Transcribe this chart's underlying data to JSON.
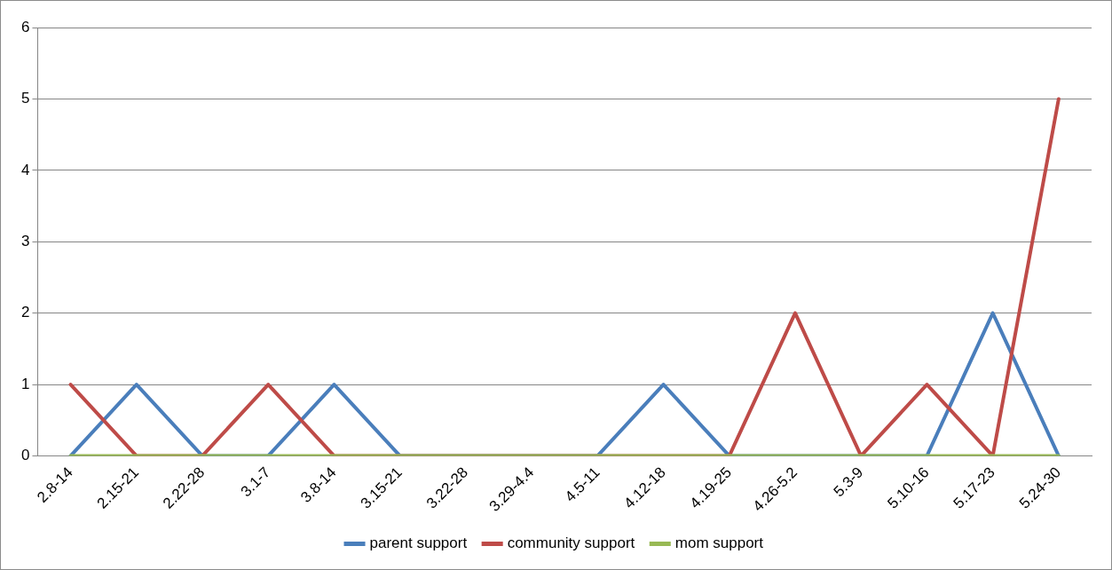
{
  "chart_data": {
    "type": "line",
    "categories": [
      "2.8-14",
      "2.15-21",
      "2.22-28",
      "3.1-7",
      "3.8-14",
      "3.15-21",
      "3.22-28",
      "3.29-4.4",
      "4.5-11",
      "4.12-18",
      "4.19-25",
      "4.26-5.2",
      "5.3-9",
      "5.10-16",
      "5.17-23",
      "5.24-30"
    ],
    "series": [
      {
        "name": "parent support",
        "color": "#4a7ebb",
        "values": [
          0,
          1,
          0,
          0,
          1,
          0,
          0,
          0,
          0,
          1,
          0,
          0,
          0,
          0,
          2,
          0
        ]
      },
      {
        "name": "community support",
        "color": "#be4b48",
        "values": [
          1,
          0,
          0,
          1,
          0,
          0,
          0,
          0,
          0,
          0,
          0,
          2,
          0,
          1,
          0,
          5
        ]
      },
      {
        "name": "mom support",
        "color": "#98b954",
        "values": [
          0,
          0,
          0,
          0,
          0,
          0,
          0,
          0,
          0,
          0,
          0,
          0,
          0,
          0,
          0,
          0
        ]
      }
    ],
    "ylim": [
      0,
      6
    ],
    "yticks": [
      0,
      1,
      2,
      3,
      4,
      5,
      6
    ],
    "grid": "y",
    "legend": "bottom",
    "marker": "none",
    "line_style": "solid"
  }
}
